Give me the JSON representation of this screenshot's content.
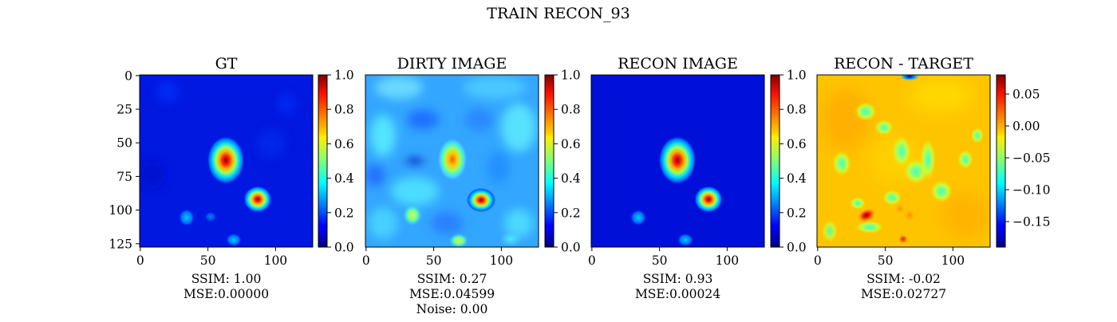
{
  "figure": {
    "suptitle": "TRAIN RECON_93"
  },
  "chart_data": [
    {
      "type": "heatmap",
      "title": "GT",
      "colormap": "jet",
      "xticks": [
        0,
        50,
        100
      ],
      "yticks": [
        0,
        25,
        50,
        75,
        100,
        125
      ],
      "image_size": [
        128,
        128
      ],
      "clim": [
        0.0,
        1.0
      ],
      "colorbar_ticks": [
        "0.0",
        "0.2",
        "0.4",
        "0.6",
        "0.8",
        "1.0"
      ],
      "metrics": [
        "SSIM: 1.00",
        "MSE:0.00000"
      ]
    },
    {
      "type": "heatmap",
      "title": "DIRTY IMAGE",
      "colormap": "jet",
      "xticks": [
        0,
        50,
        100
      ],
      "image_size": [
        128,
        128
      ],
      "clim": [
        0.0,
        1.0
      ],
      "colorbar_ticks": [
        "0.0",
        "0.2",
        "0.4",
        "0.6",
        "0.8",
        "1.0"
      ],
      "metrics": [
        "SSIM: 0.27",
        "MSE:0.04599",
        "Noise: 0.00"
      ]
    },
    {
      "type": "heatmap",
      "title": "RECON IMAGE",
      "colormap": "jet",
      "xticks": [
        0,
        50,
        100
      ],
      "image_size": [
        128,
        128
      ],
      "clim": [
        0.0,
        1.0
      ],
      "colorbar_ticks": [
        "0.0",
        "0.2",
        "0.4",
        "0.6",
        "0.8",
        "1.0"
      ],
      "metrics": [
        "SSIM: 0.93",
        "MSE:0.00024"
      ]
    },
    {
      "type": "heatmap",
      "title": "RECON - TARGET",
      "colormap": "jet",
      "xticks": [
        0,
        50,
        100
      ],
      "image_size": [
        128,
        128
      ],
      "clim": [
        -0.19,
        0.08
      ],
      "colorbar_ticks": [
        "0.05",
        "0.00",
        "−0.05",
        "−0.10",
        "−0.15"
      ],
      "metrics": [
        "SSIM: -0.02",
        "MSE:0.02727"
      ]
    }
  ]
}
